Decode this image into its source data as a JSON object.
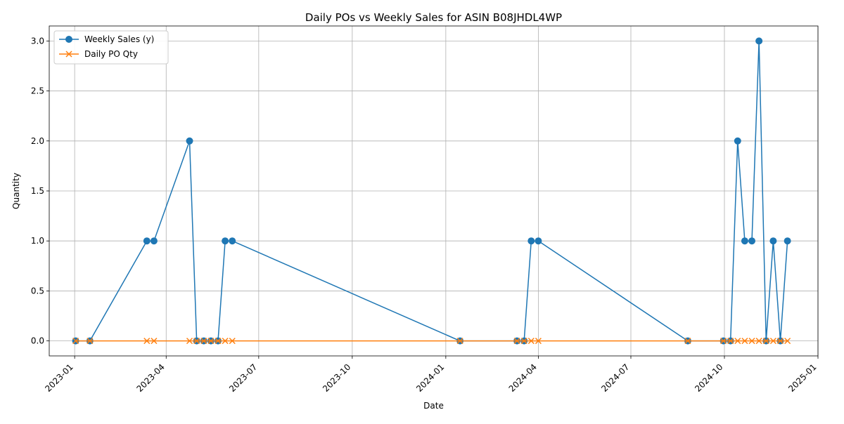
{
  "chart_data": {
    "type": "line",
    "title": "Daily POs vs Weekly Sales for ASIN B08JHDL4WP",
    "xlabel": "Date",
    "ylabel": "Quantity",
    "x_axis_type": "date",
    "xlim": [
      "2022-12-07",
      "2025-01-01"
    ],
    "ylim": [
      -0.15,
      3.15
    ],
    "x_ticks": [
      {
        "value": "2023-01-01",
        "label": "2023-01"
      },
      {
        "value": "2023-04-01",
        "label": "2023-04"
      },
      {
        "value": "2023-07-01",
        "label": "2023-07"
      },
      {
        "value": "2023-10-01",
        "label": "2023-10"
      },
      {
        "value": "2024-01-01",
        "label": "2024-01"
      },
      {
        "value": "2024-04-01",
        "label": "2024-04"
      },
      {
        "value": "2024-07-01",
        "label": "2024-07"
      },
      {
        "value": "2024-10-01",
        "label": "2024-10"
      },
      {
        "value": "2025-01-01",
        "label": "2025-01"
      }
    ],
    "y_ticks": [
      {
        "value": 0.0,
        "label": "0.0"
      },
      {
        "value": 0.5,
        "label": "0.5"
      },
      {
        "value": 1.0,
        "label": "1.0"
      },
      {
        "value": 1.5,
        "label": "1.5"
      },
      {
        "value": 2.0,
        "label": "2.0"
      },
      {
        "value": 2.5,
        "label": "2.5"
      },
      {
        "value": 3.0,
        "label": "3.0"
      }
    ],
    "grid": true,
    "legend_position": "top-left",
    "series": [
      {
        "name": "Weekly Sales (y)",
        "color": "#1f77b4",
        "marker": "circle",
        "points": [
          {
            "x": "2023-01-02",
            "y": 0
          },
          {
            "x": "2023-01-16",
            "y": 0
          },
          {
            "x": "2023-03-13",
            "y": 1
          },
          {
            "x": "2023-03-20",
            "y": 1
          },
          {
            "x": "2023-04-24",
            "y": 2
          },
          {
            "x": "2023-05-01",
            "y": 0
          },
          {
            "x": "2023-05-08",
            "y": 0
          },
          {
            "x": "2023-05-15",
            "y": 0
          },
          {
            "x": "2023-05-22",
            "y": 0
          },
          {
            "x": "2023-05-29",
            "y": 1
          },
          {
            "x": "2023-06-05",
            "y": 1
          },
          {
            "x": "2024-01-15",
            "y": 0
          },
          {
            "x": "2024-03-11",
            "y": 0
          },
          {
            "x": "2024-03-18",
            "y": 0
          },
          {
            "x": "2024-03-25",
            "y": 1
          },
          {
            "x": "2024-04-01",
            "y": 1
          },
          {
            "x": "2024-08-26",
            "y": 0
          },
          {
            "x": "2024-09-30",
            "y": 0
          },
          {
            "x": "2024-10-07",
            "y": 0
          },
          {
            "x": "2024-10-14",
            "y": 2
          },
          {
            "x": "2024-10-21",
            "y": 1
          },
          {
            "x": "2024-10-28",
            "y": 1
          },
          {
            "x": "2024-11-04",
            "y": 3
          },
          {
            "x": "2024-11-11",
            "y": 0
          },
          {
            "x": "2024-11-18",
            "y": 1
          },
          {
            "x": "2024-11-25",
            "y": 0
          },
          {
            "x": "2024-12-02",
            "y": 1
          }
        ]
      },
      {
        "name": "Daily PO Qty",
        "color": "#ff7f0e",
        "marker": "x",
        "points": [
          {
            "x": "2023-01-02",
            "y": 0
          },
          {
            "x": "2023-01-16",
            "y": 0
          },
          {
            "x": "2023-03-13",
            "y": 0
          },
          {
            "x": "2023-03-20",
            "y": 0
          },
          {
            "x": "2023-04-24",
            "y": 0
          },
          {
            "x": "2023-05-01",
            "y": 0
          },
          {
            "x": "2023-05-08",
            "y": 0
          },
          {
            "x": "2023-05-15",
            "y": 0
          },
          {
            "x": "2023-05-22",
            "y": 0
          },
          {
            "x": "2023-05-29",
            "y": 0
          },
          {
            "x": "2023-06-05",
            "y": 0
          },
          {
            "x": "2024-01-15",
            "y": 0
          },
          {
            "x": "2024-03-11",
            "y": 0
          },
          {
            "x": "2024-03-18",
            "y": 0
          },
          {
            "x": "2024-03-25",
            "y": 0
          },
          {
            "x": "2024-04-01",
            "y": 0
          },
          {
            "x": "2024-08-26",
            "y": 0
          },
          {
            "x": "2024-09-30",
            "y": 0
          },
          {
            "x": "2024-10-07",
            "y": 0
          },
          {
            "x": "2024-10-14",
            "y": 0
          },
          {
            "x": "2024-10-21",
            "y": 0
          },
          {
            "x": "2024-10-28",
            "y": 0
          },
          {
            "x": "2024-11-04",
            "y": 0
          },
          {
            "x": "2024-11-11",
            "y": 0
          },
          {
            "x": "2024-11-18",
            "y": 0
          },
          {
            "x": "2024-11-25",
            "y": 0
          },
          {
            "x": "2024-12-02",
            "y": 0
          }
        ]
      }
    ]
  }
}
